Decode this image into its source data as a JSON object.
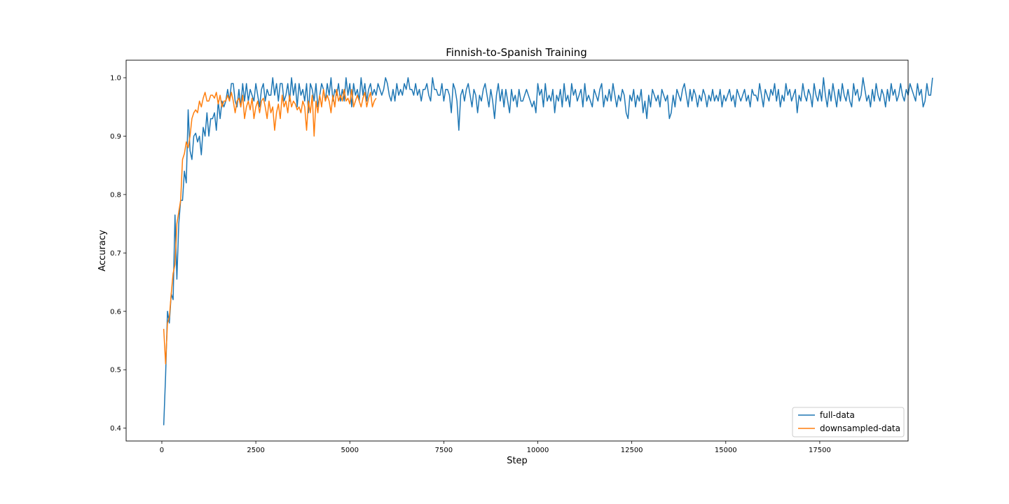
{
  "chart_data": {
    "type": "line",
    "title": "Finnish-to-Spanish Training",
    "xlabel": "Step",
    "ylabel": "Accuracy",
    "xlim": [
      -950,
      19850
    ],
    "ylim": [
      0.378,
      1.03
    ],
    "xticks": [
      0,
      2500,
      5000,
      7500,
      10000,
      12500,
      15000,
      17500
    ],
    "xtick_labels": [
      "0",
      "2500",
      "5000",
      "7500",
      "10000",
      "12500",
      "15000",
      "17500"
    ],
    "yticks": [
      0.4,
      0.5,
      0.6,
      0.7,
      0.8,
      0.9,
      1.0
    ],
    "ytick_labels": [
      "0.4",
      "0.5",
      "0.6",
      "0.7",
      "0.8",
      "0.9",
      "1.0"
    ],
    "grid": false,
    "legend_position": "lower-right",
    "series": [
      {
        "name": "full-data",
        "color": "#1f77b4",
        "x_start": 50,
        "x_step": 50,
        "values": [
          0.405,
          0.49,
          0.6,
          0.58,
          0.63,
          0.62,
          0.765,
          0.655,
          0.75,
          0.79,
          0.79,
          0.84,
          0.82,
          0.945,
          0.875,
          0.86,
          0.9,
          0.905,
          0.89,
          0.9,
          0.868,
          0.915,
          0.9,
          0.94,
          0.9,
          0.93,
          0.93,
          0.94,
          0.91,
          0.96,
          0.93,
          0.96,
          0.95,
          0.96,
          0.98,
          0.96,
          0.99,
          0.99,
          0.96,
          0.95,
          0.98,
          0.95,
          0.99,
          0.96,
          0.99,
          0.96,
          0.98,
          0.97,
          0.96,
          0.99,
          0.97,
          0.95,
          0.98,
          0.99,
          0.96,
          0.98,
          0.97,
          0.97,
          1.0,
          0.97,
          0.99,
          0.96,
          0.99,
          0.99,
          0.96,
          0.97,
          0.99,
          0.96,
          1.0,
          0.97,
          0.99,
          0.95,
          0.99,
          0.97,
          0.98,
          0.96,
          0.99,
          0.94,
          0.99,
          0.98,
          0.96,
          0.99,
          0.95,
          0.97,
          0.99,
          0.98,
          0.96,
          0.99,
          0.97,
          1.0,
          0.96,
          0.98,
          0.97,
          0.99,
          0.96,
          0.98,
          0.96,
          1.0,
          0.97,
          0.99,
          0.95,
          0.99,
          0.97,
          0.98,
          0.96,
          1.0,
          0.97,
          0.99,
          0.96,
          0.98,
          0.99,
          0.97,
          0.98,
          0.97,
          0.99,
          0.98,
          0.97,
          0.98,
          1.0,
          0.99,
          0.97,
          0.96,
          0.98,
          0.96,
          0.99,
          0.97,
          0.98,
          0.97,
          0.99,
          0.98,
          1.0,
          0.98,
          0.98,
          0.97,
          0.99,
          0.97,
          0.98,
          0.96,
          0.98,
          0.98,
          0.99,
          0.97,
          0.96,
          1.0,
          0.98,
          0.98,
          0.97,
          0.97,
          0.99,
          0.96,
          0.98,
          0.98,
          0.97,
          0.94,
          0.99,
          0.98,
          0.96,
          0.91,
          0.97,
          0.98,
          0.96,
          0.98,
          0.99,
          0.97,
          0.95,
          0.98,
          0.97,
          0.94,
          0.97,
          0.96,
          0.98,
          0.99,
          0.97,
          0.95,
          0.98,
          0.96,
          0.93,
          0.97,
          0.99,
          0.96,
          0.98,
          0.95,
          0.98,
          0.96,
          0.94,
          0.98,
          0.96,
          0.97,
          0.95,
          0.98,
          0.96,
          0.96,
          0.97,
          0.98,
          0.97,
          0.96,
          0.95,
          0.96,
          0.94,
          0.99,
          0.97,
          0.98,
          0.95,
          0.99,
          0.96,
          0.97,
          0.96,
          0.98,
          0.94,
          0.97,
          0.96,
          0.98,
          0.95,
          0.99,
          0.96,
          0.97,
          0.95,
          0.99,
          0.97,
          0.98,
          0.96,
          0.97,
          0.98,
          0.95,
          0.99,
          0.96,
          0.97,
          0.96,
          0.95,
          0.98,
          0.97,
          0.96,
          0.98,
          0.99,
          0.95,
          0.97,
          0.96,
          0.98,
          0.96,
          0.99,
          0.97,
          0.95,
          0.97,
          0.96,
          0.98,
          0.97,
          0.94,
          0.93,
          0.97,
          0.96,
          0.98,
          0.95,
          0.97,
          0.96,
          0.98,
          0.94,
          0.96,
          0.93,
          0.97,
          0.95,
          0.98,
          0.97,
          0.96,
          0.97,
          0.95,
          0.98,
          0.97,
          0.96,
          0.97,
          0.93,
          0.94,
          0.97,
          0.95,
          0.98,
          0.97,
          0.96,
          0.98,
          0.99,
          0.97,
          0.95,
          0.98,
          0.96,
          0.98,
          0.97,
          0.95,
          0.97,
          0.96,
          0.98,
          0.97,
          0.95,
          0.97,
          0.96,
          0.98,
          0.96,
          0.97,
          0.96,
          0.98,
          0.95,
          0.97,
          0.96,
          0.97,
          0.98,
          0.96,
          0.97,
          0.95,
          0.98,
          0.97,
          0.96,
          0.97,
          0.98,
          0.96,
          0.97,
          0.95,
          0.98,
          0.97,
          0.97,
          0.96,
          0.99,
          0.97,
          0.95,
          0.98,
          0.97,
          0.96,
          0.98,
          0.97,
          0.99,
          0.96,
          0.98,
          0.95,
          0.97,
          0.96,
          0.99,
          0.97,
          0.98,
          0.96,
          0.97,
          0.98,
          0.94,
          0.97,
          0.96,
          0.99,
          0.97,
          0.96,
          0.98,
          0.97,
          0.95,
          0.99,
          0.97,
          0.96,
          0.98,
          0.96,
          1.0,
          0.97,
          0.95,
          0.98,
          0.96,
          0.99,
          0.97,
          0.95,
          0.98,
          0.96,
          0.99,
          0.97,
          0.96,
          0.98,
          0.96,
          0.95,
          0.99,
          0.97,
          0.98,
          0.96,
          0.97,
          1.0,
          0.98,
          0.96,
          0.97,
          0.95,
          0.98,
          0.96,
          0.99,
          0.97,
          0.96,
          0.98,
          0.97,
          0.95,
          0.98,
          0.96,
          0.99,
          0.97,
          0.98,
          0.96,
          0.97,
          0.99,
          0.97,
          0.96,
          0.98,
          0.97,
          0.99,
          0.98,
          0.97,
          0.96,
          0.99,
          0.97,
          0.98,
          0.95,
          0.96,
          0.99,
          0.97,
          0.97,
          1.0
        ]
      },
      {
        "name": "downsampled-data",
        "color": "#ff7f0e",
        "x_start": 50,
        "x_step": 50,
        "values": [
          0.57,
          0.51,
          0.58,
          0.59,
          0.63,
          0.665,
          0.68,
          0.75,
          0.77,
          0.79,
          0.86,
          0.87,
          0.89,
          0.88,
          0.9,
          0.93,
          0.94,
          0.945,
          0.94,
          0.96,
          0.95,
          0.965,
          0.975,
          0.96,
          0.96,
          0.97,
          0.97,
          0.965,
          0.975,
          0.955,
          0.97,
          0.95,
          0.96,
          0.96,
          0.97,
          0.96,
          0.975,
          0.96,
          0.94,
          0.96,
          0.965,
          0.95,
          0.97,
          0.93,
          0.95,
          0.96,
          0.945,
          0.965,
          0.93,
          0.95,
          0.96,
          0.94,
          0.96,
          0.965,
          0.95,
          0.93,
          0.96,
          0.94,
          0.95,
          0.91,
          0.94,
          0.955,
          0.93,
          0.97,
          0.95,
          0.96,
          0.94,
          0.97,
          0.95,
          0.96,
          0.955,
          0.945,
          0.95,
          0.94,
          0.96,
          0.95,
          0.91,
          0.96,
          0.94,
          0.97,
          0.9,
          0.96,
          0.94,
          0.97,
          0.95,
          0.98,
          0.96,
          0.97,
          0.96,
          0.94,
          0.97,
          0.95,
          0.98,
          0.96,
          0.97,
          0.96,
          0.98,
          0.96,
          0.965,
          0.955,
          0.98,
          0.95,
          0.96,
          0.97,
          0.96,
          0.95,
          0.965,
          0.975,
          0.95,
          0.965,
          0.975,
          0.95,
          0.96,
          0.965
        ]
      }
    ]
  }
}
